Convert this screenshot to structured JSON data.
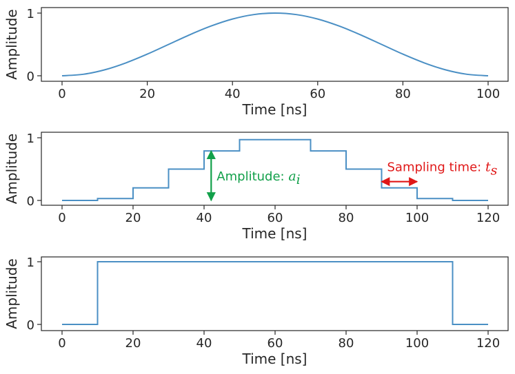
{
  "chart_data": [
    {
      "type": "line",
      "title": "",
      "xlabel": "Time [ns]",
      "ylabel": "Amplitude",
      "xlim": [
        0,
        100
      ],
      "ylim": [
        0,
        1
      ],
      "xticks": [
        0,
        20,
        40,
        60,
        80,
        100
      ],
      "yticks": [
        0,
        1
      ],
      "series": [
        {
          "x": [
            0,
            5,
            10,
            15,
            20,
            25,
            30,
            35,
            40,
            45,
            50,
            55,
            60,
            65,
            70,
            75,
            80,
            85,
            90,
            95,
            100
          ],
          "values": [
            0,
            0.024,
            0.095,
            0.206,
            0.345,
            0.5,
            0.655,
            0.794,
            0.905,
            0.976,
            1,
            0.976,
            0.905,
            0.794,
            0.655,
            0.5,
            0.345,
            0.206,
            0.095,
            0.024,
            0
          ]
        }
      ],
      "color": "#4a8fc4",
      "grid": false
    },
    {
      "type": "line",
      "title": "",
      "xlabel": "Time [ns]",
      "ylabel": "Amplitude",
      "xlim": [
        0,
        120
      ],
      "ylim": [
        0,
        1
      ],
      "xticks": [
        0,
        20,
        40,
        60,
        80,
        100,
        120
      ],
      "yticks": [
        0,
        1
      ],
      "series": [
        {
          "step": true,
          "x": [
            0,
            10,
            20,
            30,
            40,
            50,
            60,
            70,
            80,
            90,
            100,
            110,
            120
          ],
          "values": [
            0,
            0.03,
            0.2,
            0.5,
            0.79,
            0.97,
            0.97,
            0.79,
            0.5,
            0.2,
            0.03,
            0,
            0
          ]
        }
      ],
      "color": "#4a8fc4",
      "grid": false,
      "annotations": [
        {
          "text": "Amplitude: ",
          "math": "a",
          "sub": "i",
          "color": "#12a04a",
          "x": 42,
          "y_from": 0,
          "y_to": 0.79
        },
        {
          "text": "Sampling time: ",
          "math": "t",
          "sub": "s",
          "color": "#e01818",
          "x_from": 90,
          "x_to": 100,
          "y": 0.3
        }
      ]
    },
    {
      "type": "line",
      "title": "",
      "xlabel": "Time [ns]",
      "ylabel": "Amplitude",
      "xlim": [
        0,
        120
      ],
      "ylim": [
        0,
        1
      ],
      "xticks": [
        0,
        20,
        40,
        60,
        80,
        100,
        120
      ],
      "yticks": [
        0,
        1
      ],
      "series": [
        {
          "x": [
            0,
            10,
            10,
            110,
            110,
            120
          ],
          "values": [
            0,
            0,
            1,
            1,
            0,
            0
          ]
        }
      ],
      "color": "#4a8fc4",
      "grid": false
    }
  ]
}
